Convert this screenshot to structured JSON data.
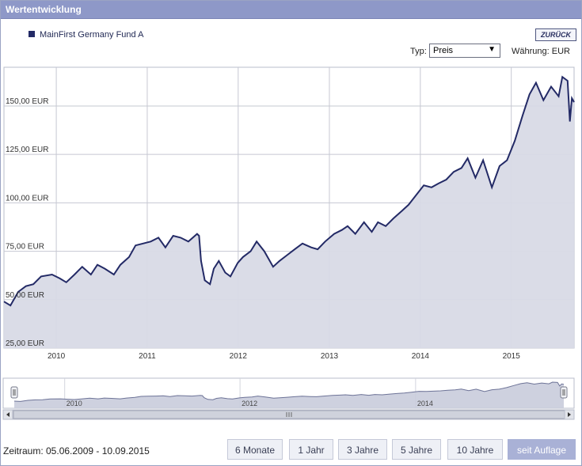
{
  "window": {
    "title": "Wertentwicklung"
  },
  "legend": {
    "series_name": "MainFirst Germany Fund A",
    "color": "#232a66"
  },
  "back_button": "ZURÜCK",
  "type_selector": {
    "label": "Typ:",
    "value": "Preis"
  },
  "currency": "Währung: EUR",
  "chart_data": {
    "type": "area",
    "title": "",
    "xlabel": "",
    "ylabel": "",
    "ylim": [
      25,
      170
    ],
    "x_range": [
      "2009-06-05",
      "2015-09-10"
    ],
    "y_ticks": [
      {
        "value": 25,
        "label": "25,00 EUR"
      },
      {
        "value": 50,
        "label": "50,00 EUR"
      },
      {
        "value": 75,
        "label": "75,00 EUR"
      },
      {
        "value": 100,
        "label": "100,00 EUR"
      },
      {
        "value": 125,
        "label": "125,00 EUR"
      },
      {
        "value": 150,
        "label": "150,00 EUR"
      }
    ],
    "x_ticks": [
      "2010",
      "2011",
      "2012",
      "2013",
      "2014",
      "2015"
    ],
    "navigator_ticks": [
      "2010",
      "2012",
      "2014"
    ],
    "grid": true,
    "legend_position": "top-left",
    "series": [
      {
        "name": "MainFirst Germany Fund A",
        "color": "#232a66",
        "fill": "#d8dae6",
        "points": [
          [
            "2009-06-05",
            49
          ],
          [
            "2009-07-01",
            47
          ],
          [
            "2009-08-01",
            54
          ],
          [
            "2009-09-01",
            57
          ],
          [
            "2009-10-01",
            58
          ],
          [
            "2009-11-01",
            62
          ],
          [
            "2009-12-15",
            63
          ],
          [
            "2010-01-15",
            61
          ],
          [
            "2010-02-10",
            59
          ],
          [
            "2010-03-15",
            63
          ],
          [
            "2010-04-15",
            67
          ],
          [
            "2010-05-20",
            63
          ],
          [
            "2010-06-15",
            68
          ],
          [
            "2010-07-15",
            66
          ],
          [
            "2010-08-20",
            63
          ],
          [
            "2010-09-15",
            68
          ],
          [
            "2010-10-20",
            72
          ],
          [
            "2010-11-15",
            78
          ],
          [
            "2010-12-15",
            79
          ],
          [
            "2011-01-15",
            80
          ],
          [
            "2011-02-15",
            82
          ],
          [
            "2011-03-15",
            77
          ],
          [
            "2011-04-15",
            83
          ],
          [
            "2011-05-15",
            82
          ],
          [
            "2011-06-15",
            80
          ],
          [
            "2011-07-20",
            84
          ],
          [
            "2011-07-28",
            83
          ],
          [
            "2011-08-05",
            70
          ],
          [
            "2011-08-20",
            60
          ],
          [
            "2011-09-10",
            58
          ],
          [
            "2011-09-25",
            66
          ],
          [
            "2011-10-15",
            70
          ],
          [
            "2011-11-10",
            64
          ],
          [
            "2011-12-01",
            62
          ],
          [
            "2011-12-30",
            69
          ],
          [
            "2012-01-20",
            72
          ],
          [
            "2012-02-20",
            75
          ],
          [
            "2012-03-15",
            80
          ],
          [
            "2012-04-15",
            75
          ],
          [
            "2012-05-20",
            67
          ],
          [
            "2012-06-15",
            70
          ],
          [
            "2012-07-15",
            73
          ],
          [
            "2012-08-15",
            76
          ],
          [
            "2012-09-15",
            79
          ],
          [
            "2012-10-20",
            77
          ],
          [
            "2012-11-15",
            76
          ],
          [
            "2012-12-15",
            80
          ],
          [
            "2013-01-20",
            84
          ],
          [
            "2013-02-20",
            86
          ],
          [
            "2013-03-15",
            88
          ],
          [
            "2013-04-15",
            84
          ],
          [
            "2013-05-20",
            90
          ],
          [
            "2013-06-20",
            85
          ],
          [
            "2013-07-15",
            90
          ],
          [
            "2013-08-15",
            88
          ],
          [
            "2013-09-15",
            92
          ],
          [
            "2013-10-20",
            96
          ],
          [
            "2013-11-15",
            99
          ],
          [
            "2013-12-15",
            104
          ],
          [
            "2014-01-15",
            109
          ],
          [
            "2014-02-15",
            108
          ],
          [
            "2014-03-15",
            110
          ],
          [
            "2014-04-15",
            112
          ],
          [
            "2014-05-15",
            116
          ],
          [
            "2014-06-15",
            118
          ],
          [
            "2014-07-10",
            123
          ],
          [
            "2014-08-10",
            113
          ],
          [
            "2014-09-10",
            122
          ],
          [
            "2014-10-15",
            108
          ],
          [
            "2014-11-15",
            119
          ],
          [
            "2014-12-15",
            122
          ],
          [
            "2015-01-15",
            132
          ],
          [
            "2015-02-15",
            145
          ],
          [
            "2015-03-15",
            156
          ],
          [
            "2015-04-10",
            162
          ],
          [
            "2015-05-10",
            153
          ],
          [
            "2015-06-10",
            160
          ],
          [
            "2015-07-10",
            155
          ],
          [
            "2015-07-25",
            165
          ],
          [
            "2015-08-15",
            163
          ],
          [
            "2015-08-24",
            142
          ],
          [
            "2015-09-01",
            154
          ],
          [
            "2015-09-10",
            152
          ]
        ]
      }
    ]
  },
  "period": {
    "label": "Zeitraum: 05.06.2009 - 10.09.2015"
  },
  "range_buttons": [
    {
      "label": "6 Monate",
      "active": false
    },
    {
      "label": "1 Jahr",
      "active": false
    },
    {
      "label": "3 Jahre",
      "active": false
    },
    {
      "label": "5 Jahre",
      "active": false
    },
    {
      "label": "10 Jahre",
      "active": false
    },
    {
      "label": "seit Auflage",
      "active": true
    }
  ]
}
